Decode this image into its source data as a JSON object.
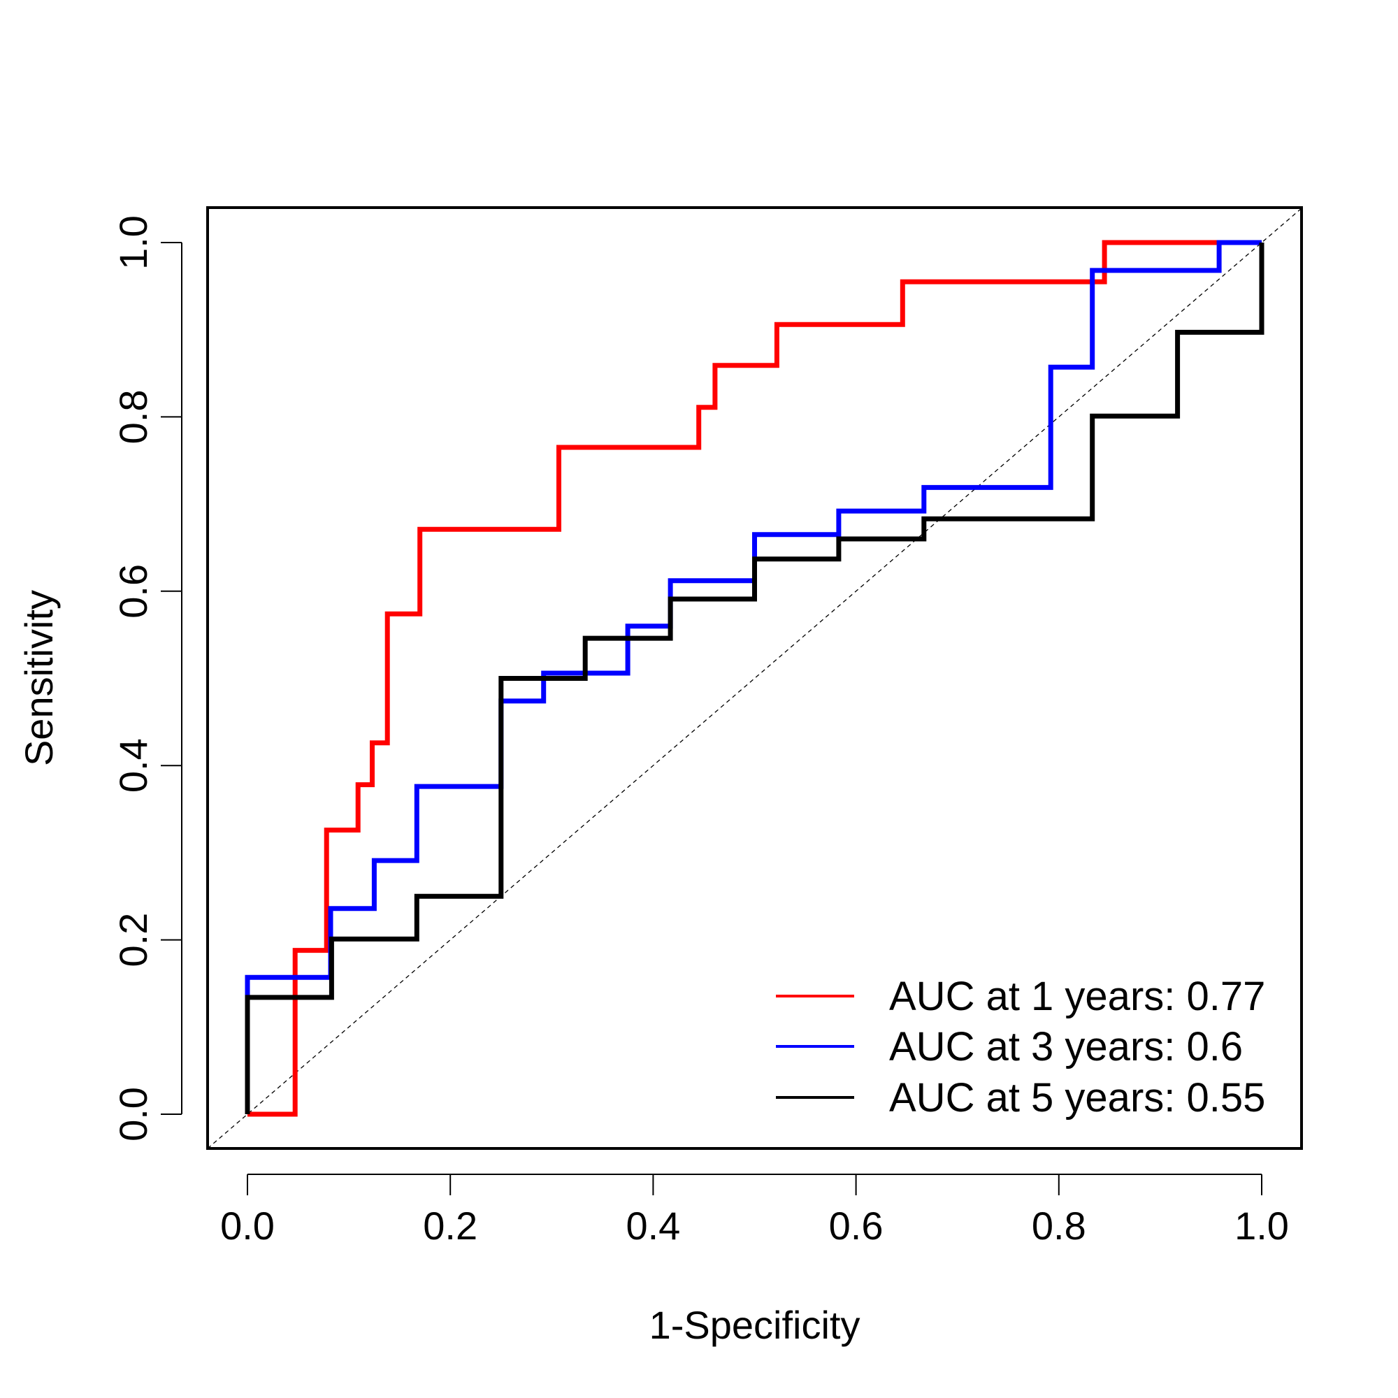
{
  "chart_data": {
    "type": "line",
    "xlabel": "1-Specificity",
    "ylabel": "Sensitivity",
    "xlim": [
      0,
      1
    ],
    "ylim": [
      0,
      1
    ],
    "x_ticks": [
      "0.0",
      "0.2",
      "0.4",
      "0.6",
      "0.8",
      "1.0"
    ],
    "y_ticks": [
      "0.0",
      "0.2",
      "0.4",
      "0.6",
      "0.8",
      "1.0"
    ],
    "grid": false,
    "legend_position": "bottom-right",
    "reference_line": {
      "from": [
        0,
        0
      ],
      "to": [
        1,
        1
      ],
      "style": "dashed"
    },
    "series": [
      {
        "name": "AUC at 1 years: 0.77",
        "color": "#ff0000",
        "points": [
          [
            0,
            0
          ],
          [
            0.047,
            0
          ],
          [
            0.047,
            0.188
          ],
          [
            0.078,
            0.188
          ],
          [
            0.078,
            0.326
          ],
          [
            0.109,
            0.326
          ],
          [
            0.109,
            0.378
          ],
          [
            0.123,
            0.378
          ],
          [
            0.123,
            0.426
          ],
          [
            0.138,
            0.426
          ],
          [
            0.138,
            0.574
          ],
          [
            0.17,
            0.574
          ],
          [
            0.17,
            0.671
          ],
          [
            0.307,
            0.671
          ],
          [
            0.307,
            0.765
          ],
          [
            0.445,
            0.765
          ],
          [
            0.445,
            0.811
          ],
          [
            0.461,
            0.811
          ],
          [
            0.461,
            0.859
          ],
          [
            0.522,
            0.859
          ],
          [
            0.522,
            0.906
          ],
          [
            0.646,
            0.906
          ],
          [
            0.646,
            0.955
          ],
          [
            0.845,
            0.955
          ],
          [
            0.845,
            1.0
          ],
          [
            1.0,
            1.0
          ]
        ]
      },
      {
        "name": "AUC at 3 years: 0.6",
        "color": "#0000ff",
        "points": [
          [
            0,
            0
          ],
          [
            0,
            0.157
          ],
          [
            0.082,
            0.157
          ],
          [
            0.082,
            0.236
          ],
          [
            0.125,
            0.236
          ],
          [
            0.125,
            0.291
          ],
          [
            0.167,
            0.291
          ],
          [
            0.167,
            0.376
          ],
          [
            0.25,
            0.376
          ],
          [
            0.25,
            0.474
          ],
          [
            0.292,
            0.474
          ],
          [
            0.292,
            0.506
          ],
          [
            0.375,
            0.506
          ],
          [
            0.375,
            0.56
          ],
          [
            0.417,
            0.56
          ],
          [
            0.417,
            0.612
          ],
          [
            0.5,
            0.612
          ],
          [
            0.5,
            0.665
          ],
          [
            0.583,
            0.665
          ],
          [
            0.583,
            0.692
          ],
          [
            0.667,
            0.692
          ],
          [
            0.667,
            0.719
          ],
          [
            0.792,
            0.719
          ],
          [
            0.792,
            0.857
          ],
          [
            0.833,
            0.857
          ],
          [
            0.833,
            0.968
          ],
          [
            0.958,
            0.968
          ],
          [
            0.958,
            1.0
          ],
          [
            1.0,
            1.0
          ]
        ]
      },
      {
        "name": "AUC at 5 years: 0.55",
        "color": "#000000",
        "points": [
          [
            0,
            0
          ],
          [
            0,
            0.134
          ],
          [
            0.083,
            0.134
          ],
          [
            0.083,
            0.201
          ],
          [
            0.167,
            0.201
          ],
          [
            0.167,
            0.25
          ],
          [
            0.25,
            0.25
          ],
          [
            0.25,
            0.5
          ],
          [
            0.333,
            0.5
          ],
          [
            0.333,
            0.546
          ],
          [
            0.417,
            0.546
          ],
          [
            0.417,
            0.591
          ],
          [
            0.5,
            0.591
          ],
          [
            0.5,
            0.637
          ],
          [
            0.583,
            0.637
          ],
          [
            0.583,
            0.66
          ],
          [
            0.667,
            0.66
          ],
          [
            0.667,
            0.683
          ],
          [
            0.833,
            0.683
          ],
          [
            0.833,
            0.801
          ],
          [
            0.917,
            0.801
          ],
          [
            0.917,
            0.897
          ],
          [
            1.0,
            0.897
          ],
          [
            1.0,
            1.0
          ]
        ]
      }
    ]
  }
}
